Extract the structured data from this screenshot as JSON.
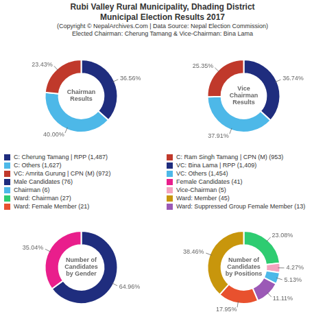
{
  "title": [
    "Rubi Valley Rural Municipality, Dhading District",
    "Municipal Election Results 2017"
  ],
  "subtitle": [
    "(Copyright © NepalArchives.Com | Data Source: Nepal Election Commission)",
    "Elected Chairman: Cherung Tamang & Vice-Chairman: Bina Lama"
  ],
  "legend_items": [
    [
      {
        "name": "C: Cherung Tamang | RPP (1,487)",
        "color": "#1f2d7e"
      },
      {
        "name": "C: Others (1,627)",
        "color": "#4db8e8"
      },
      {
        "name": "VC: Amrita Gurung | CPN (M) (972)",
        "color": "#c0392b"
      },
      {
        "name": "Male Candidates (76)",
        "color": "#1f2d7e"
      },
      {
        "name": "Chairman (6)",
        "color": "#4db8e8"
      },
      {
        "name": "Ward: Chairman (27)",
        "color": "#2ecc71"
      },
      {
        "name": "Ward: Female Member (21)",
        "color": "#e8512e"
      }
    ],
    [
      {
        "name": "C: Ram Singh Tamang | CPN (M) (953)",
        "color": "#c0392b"
      },
      {
        "name": "VC: Bina Lama | RPP (1,409)",
        "color": "#1f2d7e"
      },
      {
        "name": "VC: Others (1,454)",
        "color": "#4db8e8"
      },
      {
        "name": "Female Candidates (41)",
        "color": "#e91e8c"
      },
      {
        "name": "Vice-Chairman (5)",
        "color": "#f4a3c0"
      },
      {
        "name": "Ward: Member (45)",
        "color": "#c8960c"
      },
      {
        "name": "Ward: Suppressed Group Female Member (13)",
        "color": "#9b59b6"
      }
    ]
  ],
  "chart_data": [
    {
      "type": "doughnut",
      "title": "Chairman\nResults",
      "values": [
        36.56,
        40.0,
        23.43
      ],
      "value_labels": [
        "36.56%",
        "40.00%",
        "23.43%"
      ],
      "colors": [
        "#1f2d7e",
        "#4db8e8",
        "#c0392b"
      ],
      "data_labels": true
    },
    {
      "type": "doughnut",
      "title": "Vice\nChairman\nResults",
      "values": [
        36.74,
        37.91,
        25.35
      ],
      "value_labels": [
        "36.74%",
        "37.91%",
        "25.35%"
      ],
      "colors": [
        "#1f2d7e",
        "#4db8e8",
        "#c0392b"
      ],
      "data_labels": true
    },
    {
      "type": "doughnut",
      "title": "Number of\nCandidates\nby Gender",
      "values": [
        64.96,
        35.04
      ],
      "value_labels": [
        "64.96%",
        "35.04%"
      ],
      "colors": [
        "#1f2d7e",
        "#e91e8c"
      ],
      "data_labels": true
    },
    {
      "type": "doughnut",
      "title": "Number of\nCandidates\nby Positions",
      "values": [
        23.08,
        4.27,
        5.13,
        11.11,
        17.95,
        38.46
      ],
      "value_labels": [
        "23.08%",
        "4.27%",
        "5.13%",
        "11.11%",
        "17.95%",
        "38.46%"
      ],
      "colors": [
        "#2ecc71",
        "#f4a3c0",
        "#4db8e8",
        "#9b59b6",
        "#e8512e",
        "#c8960c"
      ],
      "data_labels": true
    }
  ]
}
